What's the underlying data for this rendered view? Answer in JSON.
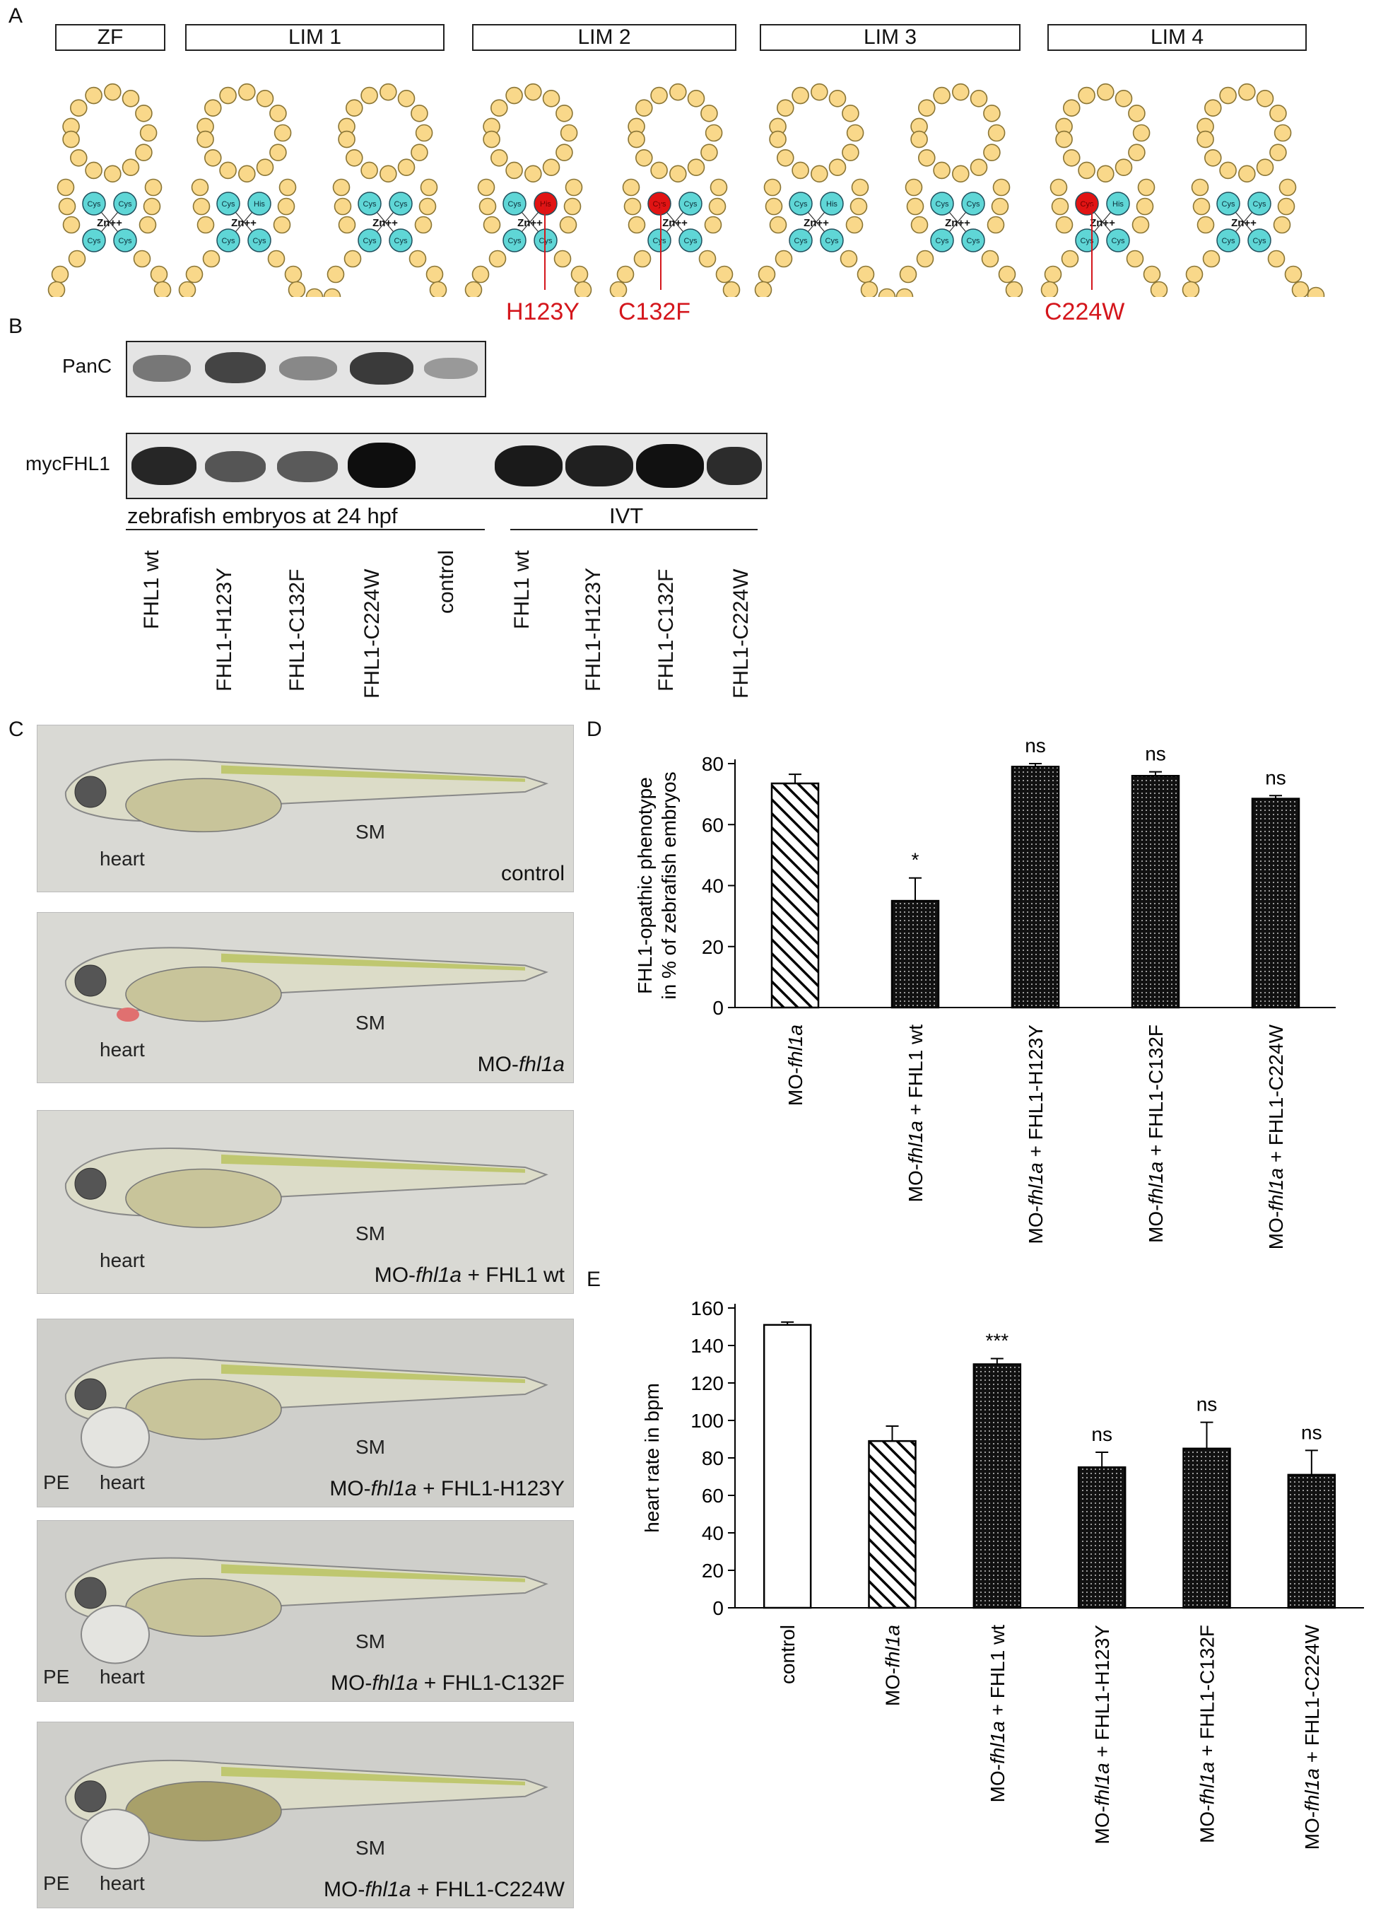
{
  "panels": {
    "a": "A",
    "b": "B",
    "c": "C",
    "d": "D",
    "e": "E"
  },
  "domain_diagram": {
    "domains": [
      "ZF",
      "LIM 1",
      "LIM 2",
      "LIM 3",
      "LIM 4"
    ],
    "cys": "Cys",
    "his": "His",
    "zn": "Zn++",
    "mutations": [
      "H123Y",
      "C132F",
      "C224W"
    ]
  },
  "blot": {
    "rows": [
      "PanC",
      "mycFHL1"
    ],
    "group_labels": [
      "zebrafish embryos at 24 hpf",
      "IVT"
    ],
    "lanes_embryo": [
      "FHL1 wt",
      "FHL1-H123Y",
      "FHL1-C132F",
      "FHL1-C224W",
      "control"
    ],
    "lanes_ivt": [
      "FHL1 wt",
      "FHL1-H123Y",
      "FHL1-C132F",
      "FHL1-C224W"
    ]
  },
  "fish_panels": [
    {
      "condition": "control",
      "labels": [
        "heart",
        "SM"
      ]
    },
    {
      "condition_prefix": "MO-",
      "condition_italic": "fhl1a",
      "condition_suffix": "",
      "labels": [
        "heart",
        "SM"
      ]
    },
    {
      "condition_prefix": "MO-",
      "condition_italic": "fhl1a",
      "condition_suffix": " + FHL1 wt",
      "labels": [
        "heart",
        "SM"
      ]
    },
    {
      "condition_prefix": "MO-",
      "condition_italic": "fhl1a",
      "condition_suffix": " + FHL1-H123Y",
      "labels": [
        "PE",
        "heart",
        "SM"
      ]
    },
    {
      "condition_prefix": "MO-",
      "condition_italic": "fhl1a",
      "condition_suffix": " + FHL1-C132F",
      "labels": [
        "PE",
        "heart",
        "SM"
      ]
    },
    {
      "condition_prefix": "MO-",
      "condition_italic": "fhl1a",
      "condition_suffix": " + FHL1-C224W",
      "labels": [
        "PE",
        "heart",
        "SM"
      ]
    }
  ],
  "chart_data": [
    {
      "type": "bar",
      "ylabel": [
        "FHL1-opathic phenotype",
        "in % of zebrafish embryos"
      ],
      "ylim": [
        0,
        80
      ],
      "yticks": [
        0,
        20,
        40,
        60,
        80
      ],
      "categories": [
        {
          "prefix": "MO-",
          "italic": "fhl1a",
          "suffix": ""
        },
        {
          "prefix": "MO-",
          "italic": "fhl1a",
          "suffix": " + FHL1 wt"
        },
        {
          "prefix": "MO-",
          "italic": "fhl1a",
          "suffix": " + FHL1-H123Y"
        },
        {
          "prefix": "MO-",
          "italic": "fhl1a",
          "suffix": " + FHL1-C132F"
        },
        {
          "prefix": "MO-",
          "italic": "fhl1a",
          "suffix": " + FHL1-C224W"
        }
      ],
      "values": [
        73.5,
        35,
        79,
        76,
        68.5
      ],
      "errors": [
        3,
        7.5,
        1,
        1.3,
        1
      ],
      "fills": [
        "hatch",
        "dots",
        "dots",
        "dots",
        "dots"
      ],
      "annotations": [
        "",
        "*",
        "ns",
        "ns",
        "ns"
      ]
    },
    {
      "type": "bar",
      "ylabel": [
        "heart rate in bpm"
      ],
      "ylim": [
        0,
        160
      ],
      "yticks": [
        0,
        20,
        40,
        60,
        80,
        100,
        120,
        140,
        160
      ],
      "categories": [
        {
          "prefix": "control",
          "italic": "",
          "suffix": ""
        },
        {
          "prefix": "MO-",
          "italic": "fhl1a",
          "suffix": ""
        },
        {
          "prefix": "MO-",
          "italic": "fhl1a",
          "suffix": " + FHL1 wt"
        },
        {
          "prefix": "MO-",
          "italic": "fhl1a",
          "suffix": " + FHL1-H123Y"
        },
        {
          "prefix": "MO-",
          "italic": "fhl1a",
          "suffix": " + FHL1-C132F"
        },
        {
          "prefix": "MO-",
          "italic": "fhl1a",
          "suffix": " + FHL1-C224W"
        }
      ],
      "values": [
        151,
        89,
        130,
        75,
        85,
        71
      ],
      "errors": [
        1.5,
        8,
        3,
        8,
        14,
        13
      ],
      "fills": [
        "white",
        "hatch",
        "dots",
        "dots",
        "dots",
        "dots"
      ],
      "annotations": [
        "",
        "",
        "***",
        "ns",
        "ns",
        "ns"
      ]
    }
  ]
}
